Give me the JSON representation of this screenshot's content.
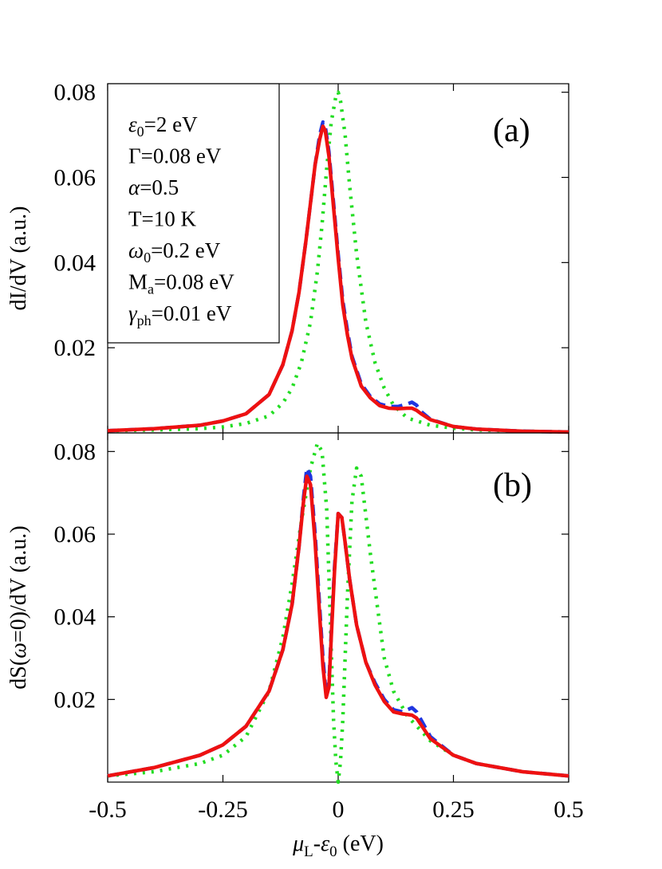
{
  "chart_data": [
    {
      "type": "line",
      "panel_label": "(a)",
      "ylabel": "dI/dV (a.u.)",
      "xlabel": "",
      "xlim": [
        -0.5,
        0.5
      ],
      "ylim": [
        0.0,
        0.082
      ],
      "x_ticks": [
        -0.5,
        -0.25,
        0,
        0.25,
        0.5
      ],
      "y_ticks": [
        0.02,
        0.04,
        0.06,
        0.08
      ],
      "y_tick_labels": [
        "0.02",
        "0.04",
        "0.06",
        "0.08"
      ],
      "legend_box": {
        "position": "top-left",
        "lines": [
          {
            "sym": "ε",
            "sub": "0",
            "rest": "=2 eV"
          },
          {
            "sym": "",
            "sub": "",
            "rest": "Γ=0.08 eV"
          },
          {
            "sym": "α",
            "sub": "",
            "rest": "=0.5"
          },
          {
            "sym": "",
            "sub": "",
            "rest": "T=10 K"
          },
          {
            "sym": "ω",
            "sub": "0",
            "rest": "=0.2 eV"
          },
          {
            "sym": "M",
            "sub": "a",
            "rest": "=0.08 eV"
          },
          {
            "sym": "γ",
            "sub": "ph",
            "rest": "=0.01 eV"
          }
        ]
      },
      "series": [
        {
          "style": "dotted",
          "color": "#22dd22",
          "x": [
            -0.5,
            -0.4,
            -0.3,
            -0.25,
            -0.2,
            -0.15,
            -0.12,
            -0.1,
            -0.08,
            -0.06,
            -0.045,
            -0.035,
            -0.025,
            -0.015,
            -0.005,
            0.0,
            0.005,
            0.015,
            0.025,
            0.04,
            0.06,
            0.08,
            0.1,
            0.12,
            0.15,
            0.2,
            0.25,
            0.3,
            0.4,
            0.5
          ],
          "y": [
            0.0005,
            0.0007,
            0.001,
            0.0014,
            0.0022,
            0.004,
            0.007,
            0.0105,
            0.0165,
            0.026,
            0.038,
            0.049,
            0.062,
            0.073,
            0.079,
            0.08,
            0.078,
            0.07,
            0.058,
            0.042,
            0.026,
            0.0165,
            0.0105,
            0.0065,
            0.0035,
            0.0018,
            0.0011,
            0.0007,
            0.0004,
            0.0002
          ]
        },
        {
          "style": "dashed",
          "color": "#1f35e0",
          "x": [
            -0.5,
            -0.4,
            -0.3,
            -0.25,
            -0.2,
            -0.15,
            -0.12,
            -0.1,
            -0.085,
            -0.07,
            -0.06,
            -0.05,
            -0.04,
            -0.033,
            -0.028,
            -0.02,
            -0.01,
            0.0,
            0.01,
            0.02,
            0.03,
            0.05,
            0.07,
            0.09,
            0.11,
            0.13,
            0.15,
            0.16,
            0.17,
            0.18,
            0.2,
            0.25,
            0.3,
            0.4,
            0.5
          ],
          "y": [
            0.0005,
            0.001,
            0.0018,
            0.0028,
            0.0045,
            0.009,
            0.016,
            0.024,
            0.033,
            0.045,
            0.054,
            0.063,
            0.07,
            0.073,
            0.072,
            0.066,
            0.054,
            0.042,
            0.031,
            0.024,
            0.018,
            0.0115,
            0.0085,
            0.0068,
            0.0062,
            0.0062,
            0.0068,
            0.0072,
            0.0065,
            0.005,
            0.0032,
            0.0015,
            0.0009,
            0.0004,
            0.0002
          ]
        },
        {
          "style": "solid",
          "color": "#ee1111",
          "x": [
            -0.5,
            -0.4,
            -0.3,
            -0.25,
            -0.2,
            -0.15,
            -0.12,
            -0.1,
            -0.085,
            -0.07,
            -0.06,
            -0.05,
            -0.04,
            -0.033,
            -0.028,
            -0.02,
            -0.01,
            0.0,
            0.01,
            0.02,
            0.03,
            0.05,
            0.07,
            0.09,
            0.11,
            0.13,
            0.15,
            0.16,
            0.17,
            0.18,
            0.2,
            0.25,
            0.3,
            0.4,
            0.5
          ],
          "y": [
            0.0005,
            0.001,
            0.0018,
            0.0028,
            0.0045,
            0.009,
            0.016,
            0.024,
            0.033,
            0.045,
            0.054,
            0.063,
            0.069,
            0.072,
            0.071,
            0.065,
            0.053,
            0.041,
            0.03,
            0.023,
            0.0175,
            0.011,
            0.0082,
            0.0064,
            0.0058,
            0.0057,
            0.0058,
            0.0058,
            0.0053,
            0.0045,
            0.0031,
            0.0015,
            0.0009,
            0.0004,
            0.0002
          ]
        }
      ]
    },
    {
      "type": "line",
      "panel_label": "(b)",
      "ylabel": "dS(ω=0)/dV (a.u.)",
      "xlabel": "μ_L-ε_0 (eV)",
      "xlim": [
        -0.5,
        0.5
      ],
      "ylim": [
        0.0,
        0.0845
      ],
      "x_ticks": [
        -0.5,
        -0.25,
        0,
        0.25,
        0.5
      ],
      "x_tick_labels": [
        "-0.5",
        "-0.25",
        "0",
        "0.25",
        "0.5"
      ],
      "y_ticks": [
        0.02,
        0.04,
        0.06,
        0.08
      ],
      "y_tick_labels": [
        "0.02",
        "0.04",
        "0.06",
        "0.08"
      ],
      "series": [
        {
          "style": "dotted",
          "color": "#22dd22",
          "x": [
            -0.5,
            -0.4,
            -0.3,
            -0.25,
            -0.2,
            -0.15,
            -0.12,
            -0.1,
            -0.08,
            -0.06,
            -0.045,
            -0.035,
            -0.025,
            -0.02,
            -0.015,
            -0.01,
            -0.005,
            0.0,
            0.005,
            0.01,
            0.02,
            0.03,
            0.04,
            0.05,
            0.07,
            0.1,
            0.12,
            0.15,
            0.2,
            0.25,
            0.3,
            0.4,
            0.5
          ],
          "y": [
            0.0015,
            0.0025,
            0.0045,
            0.0065,
            0.011,
            0.022,
            0.035,
            0.048,
            0.063,
            0.076,
            0.082,
            0.08,
            0.066,
            0.05,
            0.032,
            0.015,
            0.005,
            0.0,
            0.005,
            0.015,
            0.045,
            0.068,
            0.076,
            0.074,
            0.055,
            0.03,
            0.022,
            0.016,
            0.01,
            0.0065,
            0.0045,
            0.0025,
            0.0015
          ]
        },
        {
          "style": "dashed",
          "color": "#1f35e0",
          "x": [
            -0.5,
            -0.4,
            -0.3,
            -0.25,
            -0.2,
            -0.15,
            -0.12,
            -0.1,
            -0.085,
            -0.075,
            -0.068,
            -0.06,
            -0.05,
            -0.04,
            -0.033,
            -0.026,
            -0.02,
            -0.015,
            -0.008,
            0.0,
            0.008,
            0.015,
            0.025,
            0.04,
            0.06,
            0.08,
            0.1,
            0.12,
            0.14,
            0.16,
            0.17,
            0.2,
            0.25,
            0.3,
            0.4,
            0.5
          ],
          "y": [
            0.0015,
            0.0035,
            0.0065,
            0.009,
            0.0135,
            0.022,
            0.032,
            0.043,
            0.057,
            0.069,
            0.076,
            0.074,
            0.06,
            0.042,
            0.03,
            0.021,
            0.024,
            0.036,
            0.052,
            0.065,
            0.064,
            0.058,
            0.049,
            0.038,
            0.029,
            0.024,
            0.02,
            0.0175,
            0.017,
            0.018,
            0.017,
            0.011,
            0.0065,
            0.0045,
            0.0025,
            0.0015
          ]
        },
        {
          "style": "solid",
          "color": "#ee1111",
          "x": [
            -0.5,
            -0.4,
            -0.3,
            -0.25,
            -0.2,
            -0.15,
            -0.12,
            -0.1,
            -0.085,
            -0.075,
            -0.068,
            -0.06,
            -0.05,
            -0.04,
            -0.033,
            -0.026,
            -0.02,
            -0.015,
            -0.008,
            0.0,
            0.008,
            0.015,
            0.025,
            0.04,
            0.06,
            0.08,
            0.1,
            0.12,
            0.14,
            0.16,
            0.17,
            0.2,
            0.25,
            0.3,
            0.4,
            0.5
          ],
          "y": [
            0.0015,
            0.0035,
            0.0065,
            0.009,
            0.0135,
            0.022,
            0.032,
            0.043,
            0.057,
            0.068,
            0.074,
            0.072,
            0.058,
            0.04,
            0.028,
            0.0205,
            0.023,
            0.035,
            0.051,
            0.065,
            0.064,
            0.058,
            0.049,
            0.038,
            0.029,
            0.0235,
            0.0195,
            0.017,
            0.0165,
            0.0162,
            0.0155,
            0.0105,
            0.0065,
            0.0045,
            0.0025,
            0.0015
          ]
        }
      ]
    }
  ]
}
